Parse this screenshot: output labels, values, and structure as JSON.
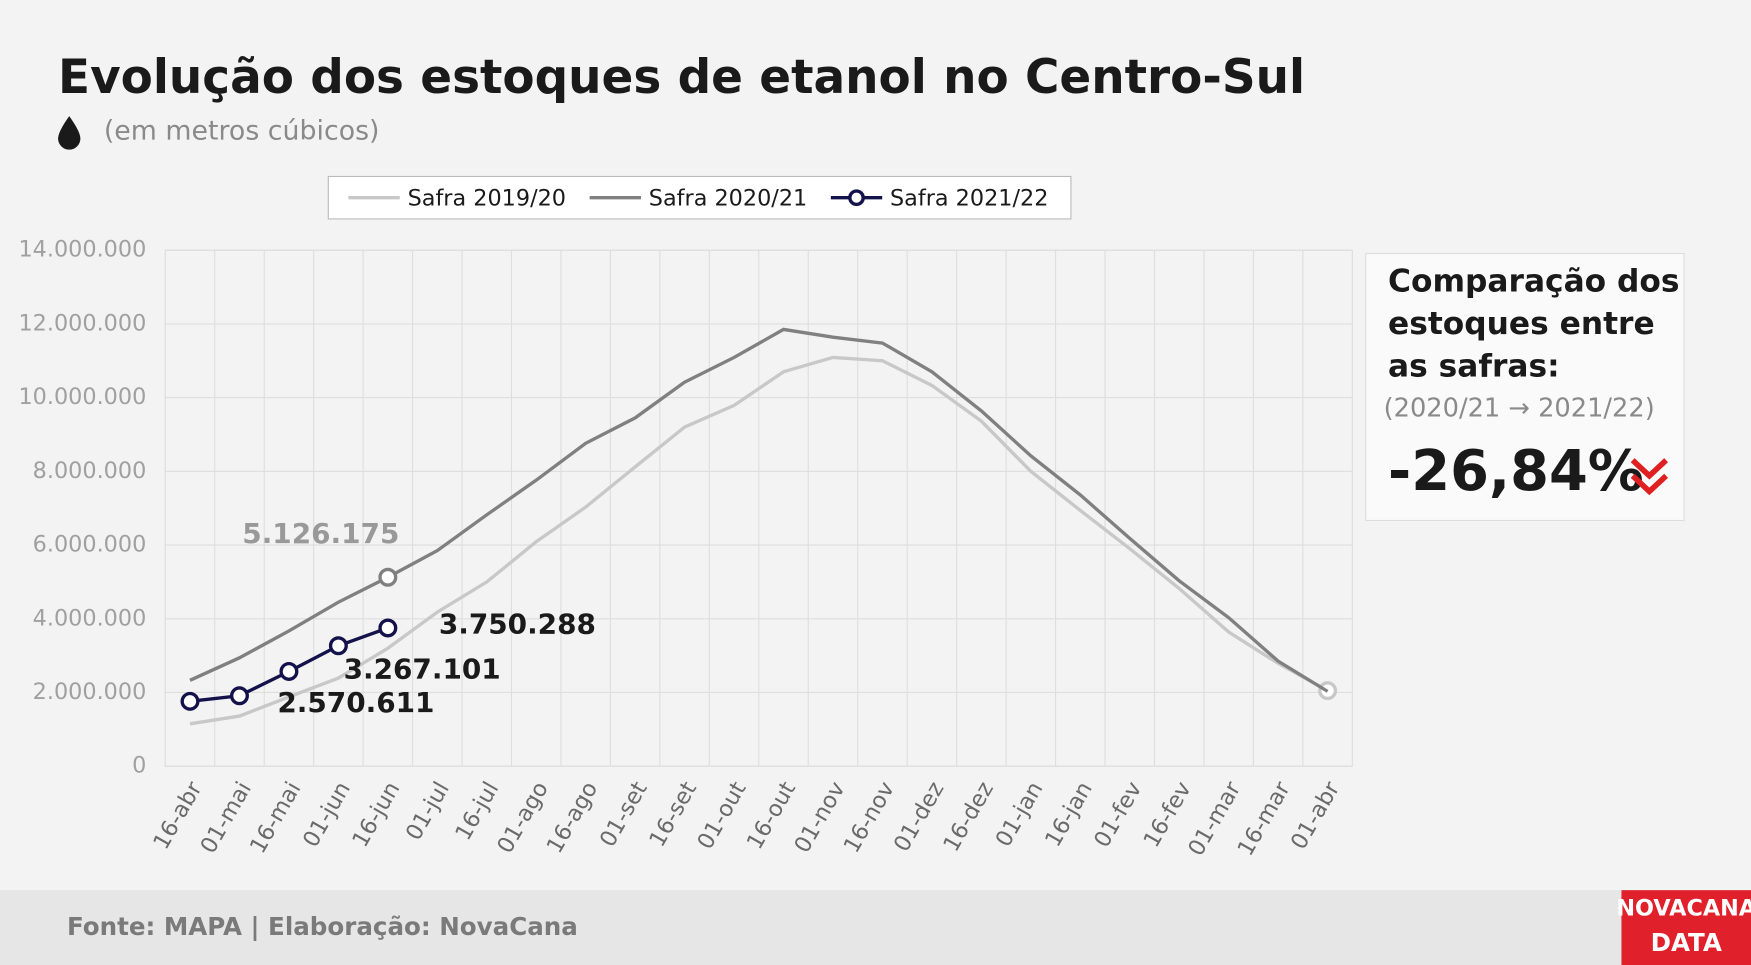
{
  "chart_data": {
    "type": "line",
    "title": "Evolução dos estoques de etanol no Centro-Sul",
    "subtitle": "(em metros cúbicos)",
    "categories": [
      "16-abr",
      "01-mai",
      "16-mai",
      "01-jun",
      "16-jun",
      "01-jul",
      "16-jul",
      "01-ago",
      "16-ago",
      "01-set",
      "16-set",
      "01-out",
      "16-out",
      "01-nov",
      "16-nov",
      "01-dez",
      "16-dez",
      "01-jan",
      "16-jan",
      "01-fev",
      "16-fev",
      "01-mar",
      "16-mar",
      "01-abr"
    ],
    "series": [
      {
        "name": "Safra 2019/20",
        "color": "#c8c8c8",
        "marker_indices": [
          23
        ],
        "values": [
          1150000,
          1360000,
          1880000,
          2390000,
          3200000,
          4180000,
          5000000,
          6090000,
          7030000,
          8120000,
          9200000,
          9790000,
          10700000,
          11090000,
          11000000,
          10330000,
          9360000,
          8000000,
          6940000,
          5900000,
          4820000,
          3640000,
          2790000,
          2050000
        ]
      },
      {
        "name": "Safra 2020/21",
        "color": "#808080",
        "marker_indices": [
          4
        ],
        "values": [
          2330000,
          2940000,
          3670000,
          4450000,
          5126175,
          5850000,
          6820000,
          7760000,
          8760000,
          9450000,
          10420000,
          11090000,
          11850000,
          11640000,
          11480000,
          10700000,
          9640000,
          8420000,
          7360000,
          6180000,
          5030000,
          4030000,
          2850000,
          2030000
        ],
        "value_labels": [
          null,
          null,
          null,
          null,
          "5.126.175",
          null,
          null,
          null,
          null,
          null,
          null,
          null,
          null,
          null,
          null,
          null,
          null,
          null,
          null,
          null,
          null,
          null,
          null,
          null
        ]
      },
      {
        "name": "Safra 2021/22",
        "color": "#14124a",
        "marker_indices": [
          0,
          1,
          2,
          3,
          4
        ],
        "values": [
          1760000,
          1910000,
          2570611,
          3267101,
          3750288,
          null,
          null,
          null,
          null,
          null,
          null,
          null,
          null,
          null,
          null,
          null,
          null,
          null,
          null,
          null,
          null,
          null,
          null,
          null
        ],
        "value_labels": [
          null,
          null,
          "2.570.611",
          "3.267.101",
          "3.750.288",
          null,
          null,
          null,
          null,
          null,
          null,
          null,
          null,
          null,
          null,
          null,
          null,
          null,
          null,
          null,
          null,
          null,
          null,
          null
        ]
      }
    ],
    "ylim": [
      0,
      14000000
    ],
    "yticks": [
      0,
      {
        "value": 2000000,
        "label": "2.000.000"
      },
      {
        "value": 4000000,
        "label": "4.000.000"
      },
      {
        "value": 6000000,
        "label": "6.000.000"
      },
      {
        "value": 8000000,
        "label": "8.000.000"
      },
      {
        "value": 10000000,
        "label": "10.000.000"
      },
      {
        "value": 12000000,
        "label": "12.000.000"
      },
      {
        "value": 14000000,
        "label": "14.000.000"
      }
    ],
    "grid": true
  },
  "panel": {
    "lines": [
      "Comparação dos",
      "estoques entre",
      "as safras:"
    ],
    "period": "(2020/21 → 2021/22)",
    "change": "-26,84%"
  },
  "footer": {
    "source": "Fonte: MAPA  | Elaboração: NovaCana",
    "logo": [
      "NOVACANA",
      "DATA"
    ]
  }
}
